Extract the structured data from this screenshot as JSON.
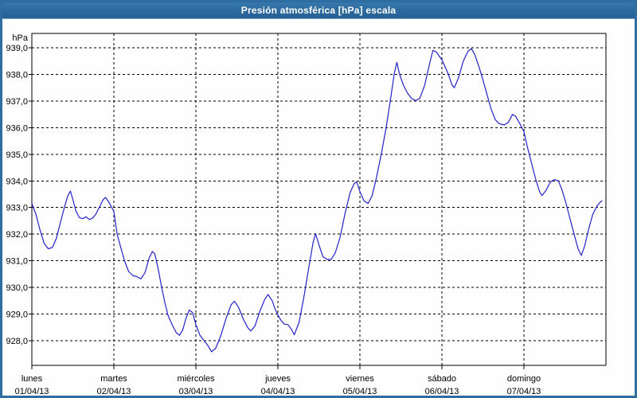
{
  "window": {
    "title": "Presión atmosférica [hPa] escala"
  },
  "colors": {
    "titlebar": "#2a679c",
    "window_border": "#2e6ca2",
    "plot_border": "#000000",
    "grid": "#000000",
    "line": "#2323cb",
    "label_text": "#000000",
    "background": "#fdfefd"
  },
  "chart_data": {
    "type": "line",
    "title": "Presión atmosférica [hPa] escala",
    "unit_label": "hPa",
    "ylabel": "hPa",
    "xlabel": "",
    "grid": "dashed",
    "legend": "none",
    "y_ticks": [
      939,
      938,
      937,
      936,
      935,
      934,
      933,
      932,
      931,
      930,
      929,
      928
    ],
    "y_tick_format": "comma-decimal-one-place",
    "ylim": [
      927.07,
      939.54
    ],
    "xlim_days": [
      0,
      7
    ],
    "x_days": [
      {
        "name": "lunes",
        "date": "01/04/13"
      },
      {
        "name": "martes",
        "date": "02/04/13"
      },
      {
        "name": "miércoles",
        "date": "03/04/13"
      },
      {
        "name": "jueves",
        "date": "04/04/13"
      },
      {
        "name": "viernes",
        "date": "05/04/13"
      },
      {
        "name": "sábado",
        "date": "06/04/13"
      },
      {
        "name": "domingo",
        "date": "07/04/13"
      }
    ],
    "series": [
      {
        "name": "Presión atmosférica",
        "x": [
          0.0,
          0.05,
          0.1,
          0.15,
          0.2,
          0.25,
          0.3,
          0.35,
          0.4,
          0.44,
          0.47,
          0.5,
          0.54,
          0.58,
          0.62,
          0.66,
          0.7,
          0.74,
          0.78,
          0.83,
          0.87,
          0.9,
          0.95,
          1.0,
          1.04,
          1.08,
          1.13,
          1.18,
          1.23,
          1.28,
          1.33,
          1.38,
          1.43,
          1.47,
          1.5,
          1.54,
          1.58,
          1.62,
          1.66,
          1.71,
          1.76,
          1.8,
          1.84,
          1.88,
          1.92,
          1.96,
          2.0,
          2.05,
          2.1,
          2.15,
          2.19,
          2.24,
          2.3,
          2.37,
          2.43,
          2.47,
          2.52,
          2.58,
          2.63,
          2.67,
          2.72,
          2.78,
          2.84,
          2.88,
          2.93,
          2.97,
          3.0,
          3.04,
          3.08,
          3.12,
          3.16,
          3.2,
          3.26,
          3.32,
          3.38,
          3.43,
          3.46,
          3.5,
          3.55,
          3.6,
          3.65,
          3.7,
          3.76,
          3.82,
          3.88,
          3.93,
          3.96,
          4.0,
          4.05,
          4.1,
          4.15,
          4.2,
          4.26,
          4.32,
          4.38,
          4.42,
          4.45,
          4.48,
          4.53,
          4.58,
          4.63,
          4.68,
          4.73,
          4.79,
          4.85,
          4.89,
          4.93,
          5.0,
          5.04,
          5.08,
          5.12,
          5.15,
          5.2,
          5.26,
          5.32,
          5.36,
          5.4,
          5.45,
          5.5,
          5.55,
          5.6,
          5.65,
          5.7,
          5.76,
          5.81,
          5.86,
          5.9,
          5.95,
          6.0,
          6.04,
          6.09,
          6.14,
          6.19,
          6.22,
          6.27,
          6.32,
          6.37,
          6.42,
          6.46,
          6.51,
          6.56,
          6.62,
          6.66,
          6.7,
          6.74,
          6.79,
          6.84,
          6.89,
          6.93,
          6.95
        ],
        "values": [
          933.15,
          932.75,
          932.15,
          931.65,
          931.45,
          931.5,
          931.85,
          932.45,
          933.05,
          933.45,
          933.62,
          933.3,
          932.85,
          932.62,
          932.58,
          932.65,
          932.55,
          932.6,
          932.75,
          933.05,
          933.3,
          933.38,
          933.15,
          932.85,
          932.0,
          931.55,
          931.0,
          930.6,
          930.45,
          930.4,
          930.32,
          930.55,
          931.1,
          931.35,
          931.25,
          930.7,
          930.05,
          929.45,
          928.95,
          928.6,
          928.3,
          928.2,
          928.4,
          928.85,
          929.15,
          929.05,
          928.6,
          928.2,
          928.0,
          927.8,
          927.58,
          927.7,
          928.15,
          928.85,
          929.35,
          929.48,
          929.25,
          928.8,
          928.5,
          928.36,
          928.55,
          929.1,
          929.55,
          929.73,
          929.5,
          929.15,
          928.97,
          928.75,
          928.62,
          928.6,
          928.45,
          928.22,
          928.7,
          929.7,
          930.8,
          931.7,
          932.02,
          931.6,
          931.15,
          931.05,
          931.05,
          931.3,
          931.9,
          932.8,
          933.55,
          933.9,
          933.97,
          933.6,
          933.25,
          933.15,
          933.45,
          934.1,
          935.0,
          936.0,
          937.2,
          938.05,
          938.45,
          938.05,
          937.6,
          937.3,
          937.1,
          937.02,
          937.1,
          937.6,
          938.4,
          938.9,
          938.85,
          938.55,
          938.28,
          938.0,
          937.62,
          937.5,
          937.85,
          938.5,
          938.88,
          938.97,
          938.75,
          938.3,
          937.8,
          937.25,
          936.7,
          936.3,
          936.15,
          936.1,
          936.2,
          936.5,
          936.42,
          936.15,
          935.85,
          935.3,
          934.7,
          934.1,
          933.6,
          933.45,
          933.65,
          933.95,
          934.05,
          934.0,
          933.7,
          933.2,
          932.6,
          931.9,
          931.45,
          931.2,
          931.55,
          932.2,
          932.75,
          933.05,
          933.2,
          933.25
        ]
      }
    ]
  }
}
